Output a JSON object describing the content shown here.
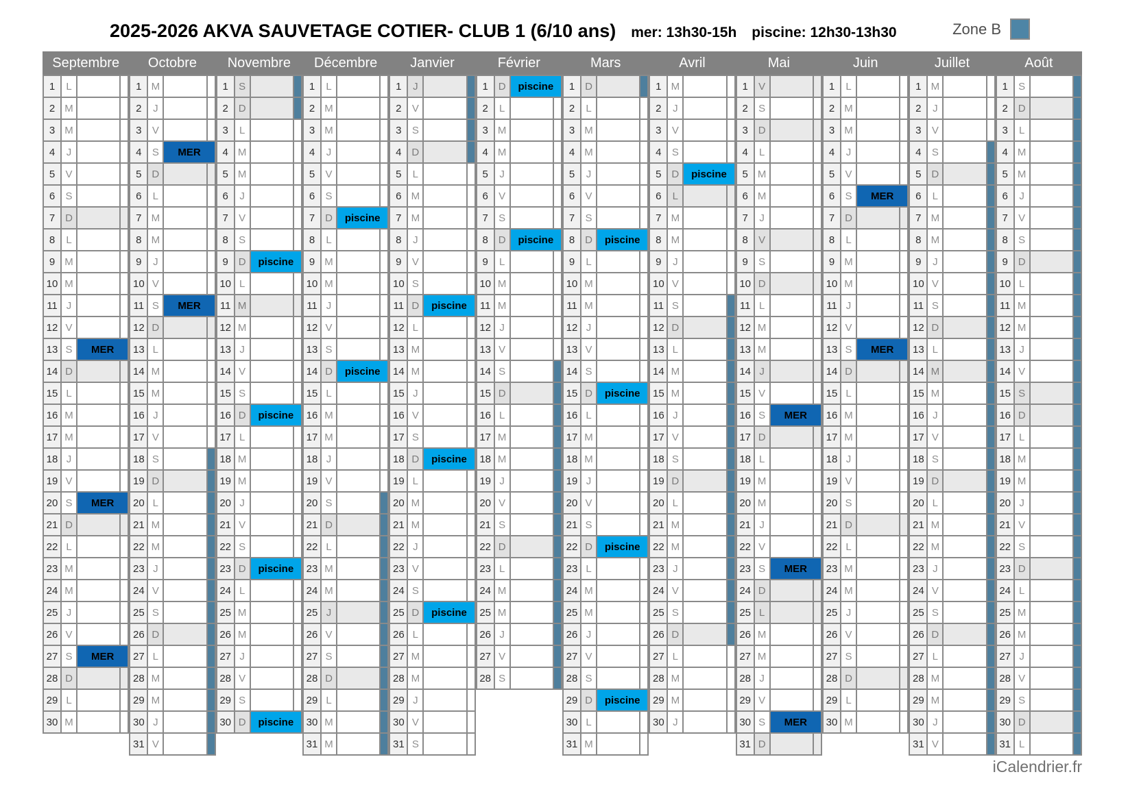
{
  "title": {
    "main": "2025-2026 AKVA SAUVETAGE COTIER-  CLUB 1 (6/10 ans)",
    "mer_hours": "mer: 13h30-15h",
    "piscine_hours": "piscine: 12h30-13h30"
  },
  "zone": {
    "label": "Zone B"
  },
  "footer": {
    "credit": "iCalendrier.fr"
  },
  "weekday_letters": [
    "L",
    "M",
    "M",
    "J",
    "V",
    "S",
    "D"
  ],
  "session_labels": {
    "sea": "MER",
    "pool": "piscine"
  },
  "colors": {
    "session_mer": "#1066b2",
    "session_piscine": "#00a5e9",
    "school_holiday_bar": "#4e7f9d",
    "zone_square": "#4d85a6",
    "header_bg": "#828282",
    "sunday_shade": "#e9e9e9"
  },
  "months": [
    {
      "name": "Septembre",
      "days": 30,
      "first_weekday": 0,
      "sessions": {
        "13": "MER",
        "20": "MER",
        "27": "MER"
      },
      "public_holidays": [],
      "school_holidays": []
    },
    {
      "name": "Octobre",
      "days": 31,
      "first_weekday": 2,
      "sessions": {
        "4": "MER",
        "11": "MER"
      },
      "public_holidays": [],
      "school_holidays": [
        [
          18,
          31
        ]
      ]
    },
    {
      "name": "Novembre",
      "days": 30,
      "first_weekday": 5,
      "sessions": {
        "9": "piscine",
        "16": "piscine",
        "23": "piscine",
        "30": "piscine"
      },
      "public_holidays": [
        1,
        11
      ],
      "school_holidays": [
        [
          1,
          2
        ]
      ]
    },
    {
      "name": "Décembre",
      "days": 31,
      "first_weekday": 0,
      "sessions": {
        "7": "piscine",
        "14": "piscine"
      },
      "public_holidays": [
        25
      ],
      "school_holidays": [
        [
          20,
          31
        ]
      ]
    },
    {
      "name": "Janvier",
      "days": 31,
      "first_weekday": 3,
      "sessions": {
        "11": "piscine",
        "18": "piscine",
        "25": "piscine"
      },
      "public_holidays": [
        1
      ],
      "school_holidays": [
        [
          1,
          4
        ]
      ]
    },
    {
      "name": "Février",
      "days": 28,
      "first_weekday": 6,
      "sessions": {
        "1": "piscine",
        "8": "piscine"
      },
      "public_holidays": [],
      "school_holidays": [
        [
          14,
          28
        ]
      ]
    },
    {
      "name": "Mars",
      "days": 31,
      "first_weekday": 6,
      "sessions": {
        "8": "piscine",
        "15": "piscine",
        "22": "piscine",
        "29": "piscine"
      },
      "public_holidays": [],
      "school_holidays": [
        [
          1,
          1
        ]
      ]
    },
    {
      "name": "Avril",
      "days": 30,
      "first_weekday": 2,
      "sessions": {
        "5": "piscine"
      },
      "public_holidays": [
        6
      ],
      "school_holidays": [
        [
          11,
          26
        ]
      ]
    },
    {
      "name": "Mai",
      "days": 31,
      "first_weekday": 4,
      "sessions": {
        "16": "MER",
        "23": "MER",
        "30": "MER"
      },
      "public_holidays": [
        1,
        8,
        14,
        25
      ],
      "school_holidays": []
    },
    {
      "name": "Juin",
      "days": 30,
      "first_weekday": 0,
      "sessions": {
        "6": "MER",
        "13": "MER"
      },
      "public_holidays": [],
      "school_holidays": []
    },
    {
      "name": "Juillet",
      "days": 31,
      "first_weekday": 2,
      "sessions": {},
      "public_holidays": [
        14
      ],
      "school_holidays": [
        [
          4,
          31
        ]
      ]
    },
    {
      "name": "Août",
      "days": 31,
      "first_weekday": 5,
      "sessions": {},
      "public_holidays": [
        15
      ],
      "school_holidays": [
        [
          1,
          31
        ]
      ]
    }
  ]
}
